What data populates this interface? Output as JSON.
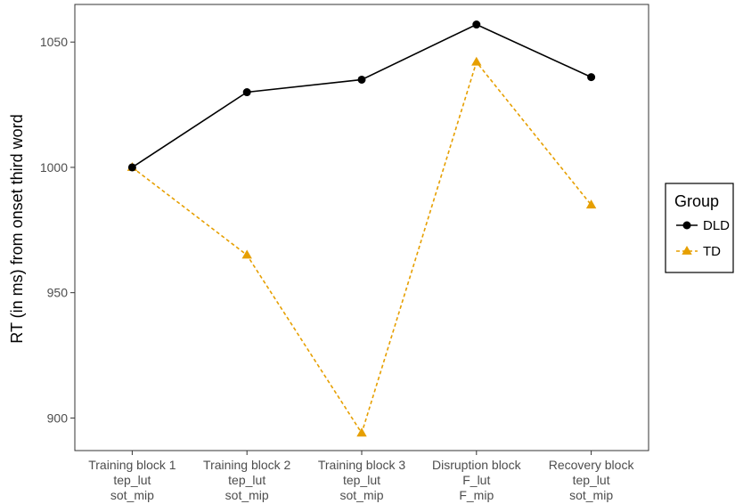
{
  "chart_data": {
    "type": "line",
    "title": "",
    "xlabel": "",
    "ylabel": "RT (in ms) from onset third word",
    "categories": [
      [
        "Training block 1",
        "tep_lut",
        "sot_mip"
      ],
      [
        "Training block 2",
        "tep_lut",
        "sot_mip"
      ],
      [
        "Training block 3",
        "tep_lut",
        "sot_mip"
      ],
      [
        "Disruption block",
        "F_lut",
        "F_mip"
      ],
      [
        "Recovery block",
        "tep_lut",
        "sot_mip"
      ]
    ],
    "ylim": [
      887,
      1065
    ],
    "yticks": [
      900,
      950,
      1000,
      1050
    ],
    "grid": false,
    "legend": {
      "title": "Group",
      "position": "right"
    },
    "series": [
      {
        "name": "DLD",
        "color": "#000000",
        "marker": "circle",
        "linestyle": "solid",
        "values": [
          1000,
          1030,
          1035,
          1057,
          1036
        ]
      },
      {
        "name": "TD",
        "color": "#E69F00",
        "marker": "triangle",
        "linestyle": "dashed",
        "values": [
          1000,
          965,
          894,
          1042,
          985
        ]
      }
    ]
  }
}
